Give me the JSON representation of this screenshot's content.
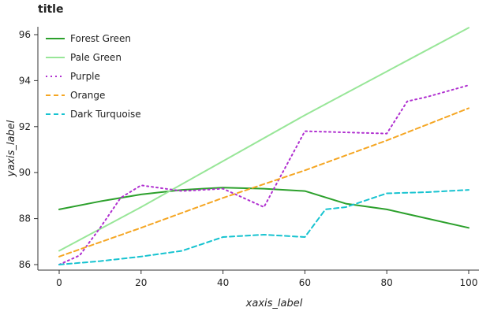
{
  "chart_data": {
    "type": "line",
    "title": "title",
    "xlabel": "xaxis_label",
    "ylabel": "yaxis_label",
    "xlim": [
      0,
      100
    ],
    "ylim": [
      86,
      96
    ],
    "x_ticks": [
      0,
      20,
      40,
      60,
      80,
      100
    ],
    "y_ticks": [
      86,
      88,
      90,
      92,
      94,
      96
    ],
    "grid": false,
    "legend_position": "top-left",
    "series": [
      {
        "name": "Forest Green",
        "color": "#2ca02c",
        "dash": "solid",
        "x": [
          0,
          10,
          20,
          30,
          40,
          50,
          60,
          70,
          80,
          90,
          100
        ],
        "y": [
          88.4,
          88.75,
          89.05,
          89.25,
          89.35,
          89.3,
          89.2,
          88.65,
          88.4,
          88.0,
          87.6
        ]
      },
      {
        "name": "Pale Green",
        "color": "#98e698",
        "dash": "solid",
        "x": [
          0,
          20,
          40,
          60,
          80,
          100
        ],
        "y": [
          86.6,
          88.5,
          90.5,
          92.5,
          94.4,
          96.3
        ]
      },
      {
        "name": "Purple",
        "color": "#b030d0",
        "dash": "dot",
        "x": [
          0,
          5,
          10,
          15,
          20,
          30,
          40,
          50,
          60,
          70,
          80,
          85,
          90,
          100
        ],
        "y": [
          86.0,
          86.4,
          87.6,
          88.9,
          89.45,
          89.2,
          89.3,
          88.5,
          91.8,
          91.75,
          91.7,
          93.1,
          93.3,
          93.8
        ]
      },
      {
        "name": "Orange",
        "color": "#f5a623",
        "dash": "dash",
        "x": [
          0,
          20,
          40,
          60,
          80,
          100
        ],
        "y": [
          86.35,
          87.6,
          88.9,
          90.1,
          91.4,
          92.8
        ]
      },
      {
        "name": "Dark Turquoise",
        "color": "#17c3d0",
        "dash": "dash",
        "x": [
          0,
          10,
          20,
          30,
          40,
          50,
          60,
          65,
          70,
          80,
          90,
          100
        ],
        "y": [
          86.0,
          86.15,
          86.35,
          86.6,
          87.2,
          87.3,
          87.2,
          88.4,
          88.5,
          89.1,
          89.15,
          89.25
        ]
      }
    ]
  }
}
